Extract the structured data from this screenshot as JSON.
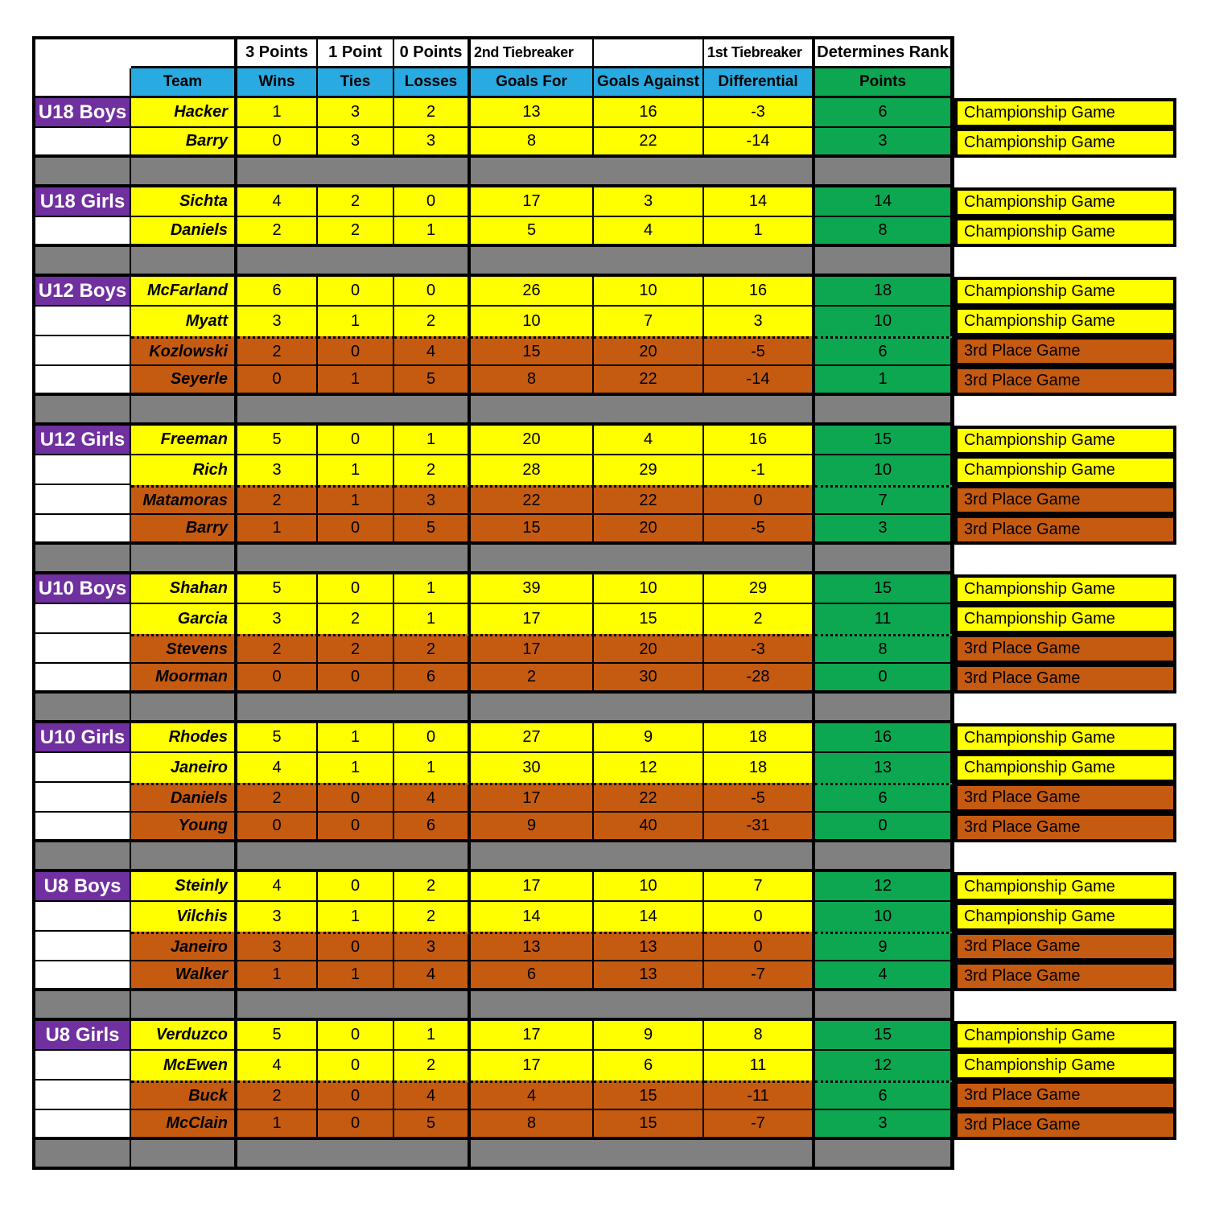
{
  "colors": {
    "yellow": "#FFFF00",
    "orange": "#C55A11",
    "green": "#0CA750",
    "blue": "#29ABE2",
    "purple": "#7030A0",
    "gray": "#808080",
    "border": "#000000"
  },
  "table": {
    "top_headers": [
      "3 Points",
      "1 Point",
      "0 Points",
      "2nd Tiebreaker",
      "1st Tiebreaker",
      "Determines Rank"
    ],
    "column_headers": [
      "Team",
      "Wins",
      "Ties",
      "Losses",
      "Goals For",
      "Goals Against",
      "Differential",
      "Points"
    ],
    "game_labels": {
      "championship": "Championship Game",
      "third": "3rd Place Game"
    },
    "groups": [
      {
        "name": "U18 Boys",
        "teams": [
          {
            "name": "Hacker",
            "wins": 1,
            "ties": 3,
            "losses": 2,
            "goals_for": 13,
            "goals_against": 16,
            "differential": -3,
            "points": 6,
            "tier": "championship",
            "game": "Championship Game"
          },
          {
            "name": "Barry",
            "wins": 0,
            "ties": 3,
            "losses": 3,
            "goals_for": 8,
            "goals_against": 22,
            "differential": -14,
            "points": 3,
            "tier": "championship",
            "game": "Championship Game"
          }
        ]
      },
      {
        "name": "U18 Girls",
        "teams": [
          {
            "name": "Sichta",
            "wins": 4,
            "ties": 2,
            "losses": 0,
            "goals_for": 17,
            "goals_against": 3,
            "differential": 14,
            "points": 14,
            "tier": "championship",
            "game": "Championship Game"
          },
          {
            "name": "Daniels",
            "wins": 2,
            "ties": 2,
            "losses": 1,
            "goals_for": 5,
            "goals_against": 4,
            "differential": 1,
            "points": 8,
            "tier": "championship",
            "game": "Championship Game"
          }
        ]
      },
      {
        "name": "U12 Boys",
        "teams": [
          {
            "name": "McFarland",
            "wins": 6,
            "ties": 0,
            "losses": 0,
            "goals_for": 26,
            "goals_against": 10,
            "differential": 16,
            "points": 18,
            "tier": "championship",
            "game": "Championship Game"
          },
          {
            "name": "Myatt",
            "wins": 3,
            "ties": 1,
            "losses": 2,
            "goals_for": 10,
            "goals_against": 7,
            "differential": 3,
            "points": 10,
            "tier": "championship",
            "game": "Championship Game"
          },
          {
            "name": "Kozlowski",
            "wins": 2,
            "ties": 0,
            "losses": 4,
            "goals_for": 15,
            "goals_against": 20,
            "differential": -5,
            "points": 6,
            "tier": "third",
            "game": "3rd Place Game"
          },
          {
            "name": "Seyerle",
            "wins": 0,
            "ties": 1,
            "losses": 5,
            "goals_for": 8,
            "goals_against": 22,
            "differential": -14,
            "points": 1,
            "tier": "third",
            "game": "3rd Place Game"
          }
        ]
      },
      {
        "name": "U12 Girls",
        "teams": [
          {
            "name": "Freeman",
            "wins": 5,
            "ties": 0,
            "losses": 1,
            "goals_for": 20,
            "goals_against": 4,
            "differential": 16,
            "points": 15,
            "tier": "championship",
            "game": "Championship Game"
          },
          {
            "name": "Rich",
            "wins": 3,
            "ties": 1,
            "losses": 2,
            "goals_for": 28,
            "goals_against": 29,
            "differential": -1,
            "points": 10,
            "tier": "championship",
            "game": "Championship Game"
          },
          {
            "name": "Matamoras",
            "wins": 2,
            "ties": 1,
            "losses": 3,
            "goals_for": 22,
            "goals_against": 22,
            "differential": 0,
            "points": 7,
            "tier": "third",
            "game": "3rd Place Game"
          },
          {
            "name": "Barry",
            "wins": 1,
            "ties": 0,
            "losses": 5,
            "goals_for": 15,
            "goals_against": 20,
            "differential": -5,
            "points": 3,
            "tier": "third",
            "game": "3rd Place Game"
          }
        ]
      },
      {
        "name": "U10 Boys",
        "teams": [
          {
            "name": "Shahan",
            "wins": 5,
            "ties": 0,
            "losses": 1,
            "goals_for": 39,
            "goals_against": 10,
            "differential": 29,
            "points": 15,
            "tier": "championship",
            "game": "Championship Game"
          },
          {
            "name": "Garcia",
            "wins": 3,
            "ties": 2,
            "losses": 1,
            "goals_for": 17,
            "goals_against": 15,
            "differential": 2,
            "points": 11,
            "tier": "championship",
            "game": "Championship Game"
          },
          {
            "name": "Stevens",
            "wins": 2,
            "ties": 2,
            "losses": 2,
            "goals_for": 17,
            "goals_against": 20,
            "differential": -3,
            "points": 8,
            "tier": "third",
            "game": "3rd Place Game"
          },
          {
            "name": "Moorman",
            "wins": 0,
            "ties": 0,
            "losses": 6,
            "goals_for": 2,
            "goals_against": 30,
            "differential": -28,
            "points": 0,
            "tier": "third",
            "game": "3rd Place Game"
          }
        ]
      },
      {
        "name": "U10 Girls",
        "teams": [
          {
            "name": "Rhodes",
            "wins": 5,
            "ties": 1,
            "losses": 0,
            "goals_for": 27,
            "goals_against": 9,
            "differential": 18,
            "points": 16,
            "tier": "championship",
            "game": "Championship Game"
          },
          {
            "name": "Janeiro",
            "wins": 4,
            "ties": 1,
            "losses": 1,
            "goals_for": 30,
            "goals_against": 12,
            "differential": 18,
            "points": 13,
            "tier": "championship",
            "game": "Championship Game"
          },
          {
            "name": "Daniels",
            "wins": 2,
            "ties": 0,
            "losses": 4,
            "goals_for": 17,
            "goals_against": 22,
            "differential": -5,
            "points": 6,
            "tier": "third",
            "game": "3rd Place Game"
          },
          {
            "name": "Young",
            "wins": 0,
            "ties": 0,
            "losses": 6,
            "goals_for": 9,
            "goals_against": 40,
            "differential": -31,
            "points": 0,
            "tier": "third",
            "game": "3rd Place Game"
          }
        ]
      },
      {
        "name": "U8 Boys",
        "teams": [
          {
            "name": "Steinly",
            "wins": 4,
            "ties": 0,
            "losses": 2,
            "goals_for": 17,
            "goals_against": 10,
            "differential": 7,
            "points": 12,
            "tier": "championship",
            "game": "Championship Game"
          },
          {
            "name": "Vilchis",
            "wins": 3,
            "ties": 1,
            "losses": 2,
            "goals_for": 14,
            "goals_against": 14,
            "differential": 0,
            "points": 10,
            "tier": "championship",
            "game": "Championship Game"
          },
          {
            "name": "Janeiro",
            "wins": 3,
            "ties": 0,
            "losses": 3,
            "goals_for": 13,
            "goals_against": 13,
            "differential": 0,
            "points": 9,
            "tier": "third",
            "game": "3rd Place Game"
          },
          {
            "name": "Walker",
            "wins": 1,
            "ties": 1,
            "losses": 4,
            "goals_for": 6,
            "goals_against": 13,
            "differential": -7,
            "points": 4,
            "tier": "third",
            "game": "3rd Place Game"
          }
        ]
      },
      {
        "name": "U8 Girls",
        "teams": [
          {
            "name": "Verduzco",
            "wins": 5,
            "ties": 0,
            "losses": 1,
            "goals_for": 17,
            "goals_against": 9,
            "differential": 8,
            "points": 15,
            "tier": "championship",
            "game": "Championship Game"
          },
          {
            "name": "McEwen",
            "wins": 4,
            "ties": 0,
            "losses": 2,
            "goals_for": 17,
            "goals_against": 6,
            "differential": 11,
            "points": 12,
            "tier": "championship",
            "game": "Championship Game"
          },
          {
            "name": "Buck",
            "wins": 2,
            "ties": 0,
            "losses": 4,
            "goals_for": 4,
            "goals_against": 15,
            "differential": -11,
            "points": 6,
            "tier": "third",
            "game": "3rd Place Game"
          },
          {
            "name": "McClain",
            "wins": 1,
            "ties": 0,
            "losses": 5,
            "goals_for": 8,
            "goals_against": 15,
            "differential": -7,
            "points": 3,
            "tier": "third",
            "game": "3rd Place Game"
          }
        ]
      }
    ]
  }
}
